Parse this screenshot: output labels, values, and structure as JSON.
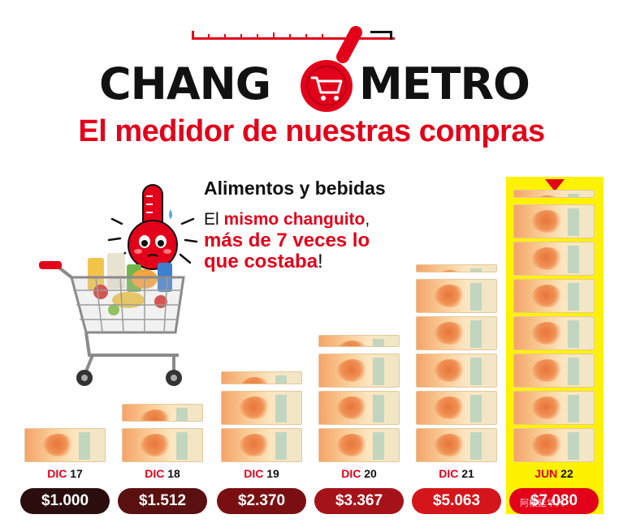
{
  "header": {
    "title_left": "CHANG",
    "title_right": "METRO",
    "subtitle": "El medidor de nuestras compras"
  },
  "callout": {
    "category": "Alimentos y bebidas",
    "line1_plain": "El ",
    "line1_red": "mismo changuito",
    "line1_end": ",",
    "line2_red": "más de 7 veces lo",
    "line3_red": "que costaba",
    "line3_end": "!"
  },
  "colors": {
    "brand_red": "#e2001a",
    "highlight_yellow": "#fff200",
    "pill_dark": "#2b0d0d",
    "pill_mid": "#7a0f12",
    "pill_red": "#d4151b"
  },
  "icons": [
    "thermometer-mascot-icon",
    "shopping-cart-icon",
    "banknote-1000-icon"
  ],
  "watermark": "阿根廷华人",
  "chart_data": {
    "type": "bar",
    "categories": [
      "DIC 17",
      "DIC 18",
      "DIC 19",
      "DIC 20",
      "DIC 21",
      "JUN 22"
    ],
    "period_month": [
      "DIC",
      "DIC",
      "DIC",
      "DIC",
      "DIC",
      "JUN"
    ],
    "period_year": [
      "17",
      "18",
      "19",
      "20",
      "21",
      "22"
    ],
    "values": [
      1000,
      1512,
      2370,
      3367,
      5063,
      7080
    ],
    "value_labels": [
      "$1.000",
      "$1.512",
      "$2.370",
      "$3.367",
      "$5.063",
      "$7.080"
    ],
    "unit_per_note": 1000,
    "highlighted_index": 5,
    "title": "",
    "xlabel": "",
    "ylabel": ""
  }
}
